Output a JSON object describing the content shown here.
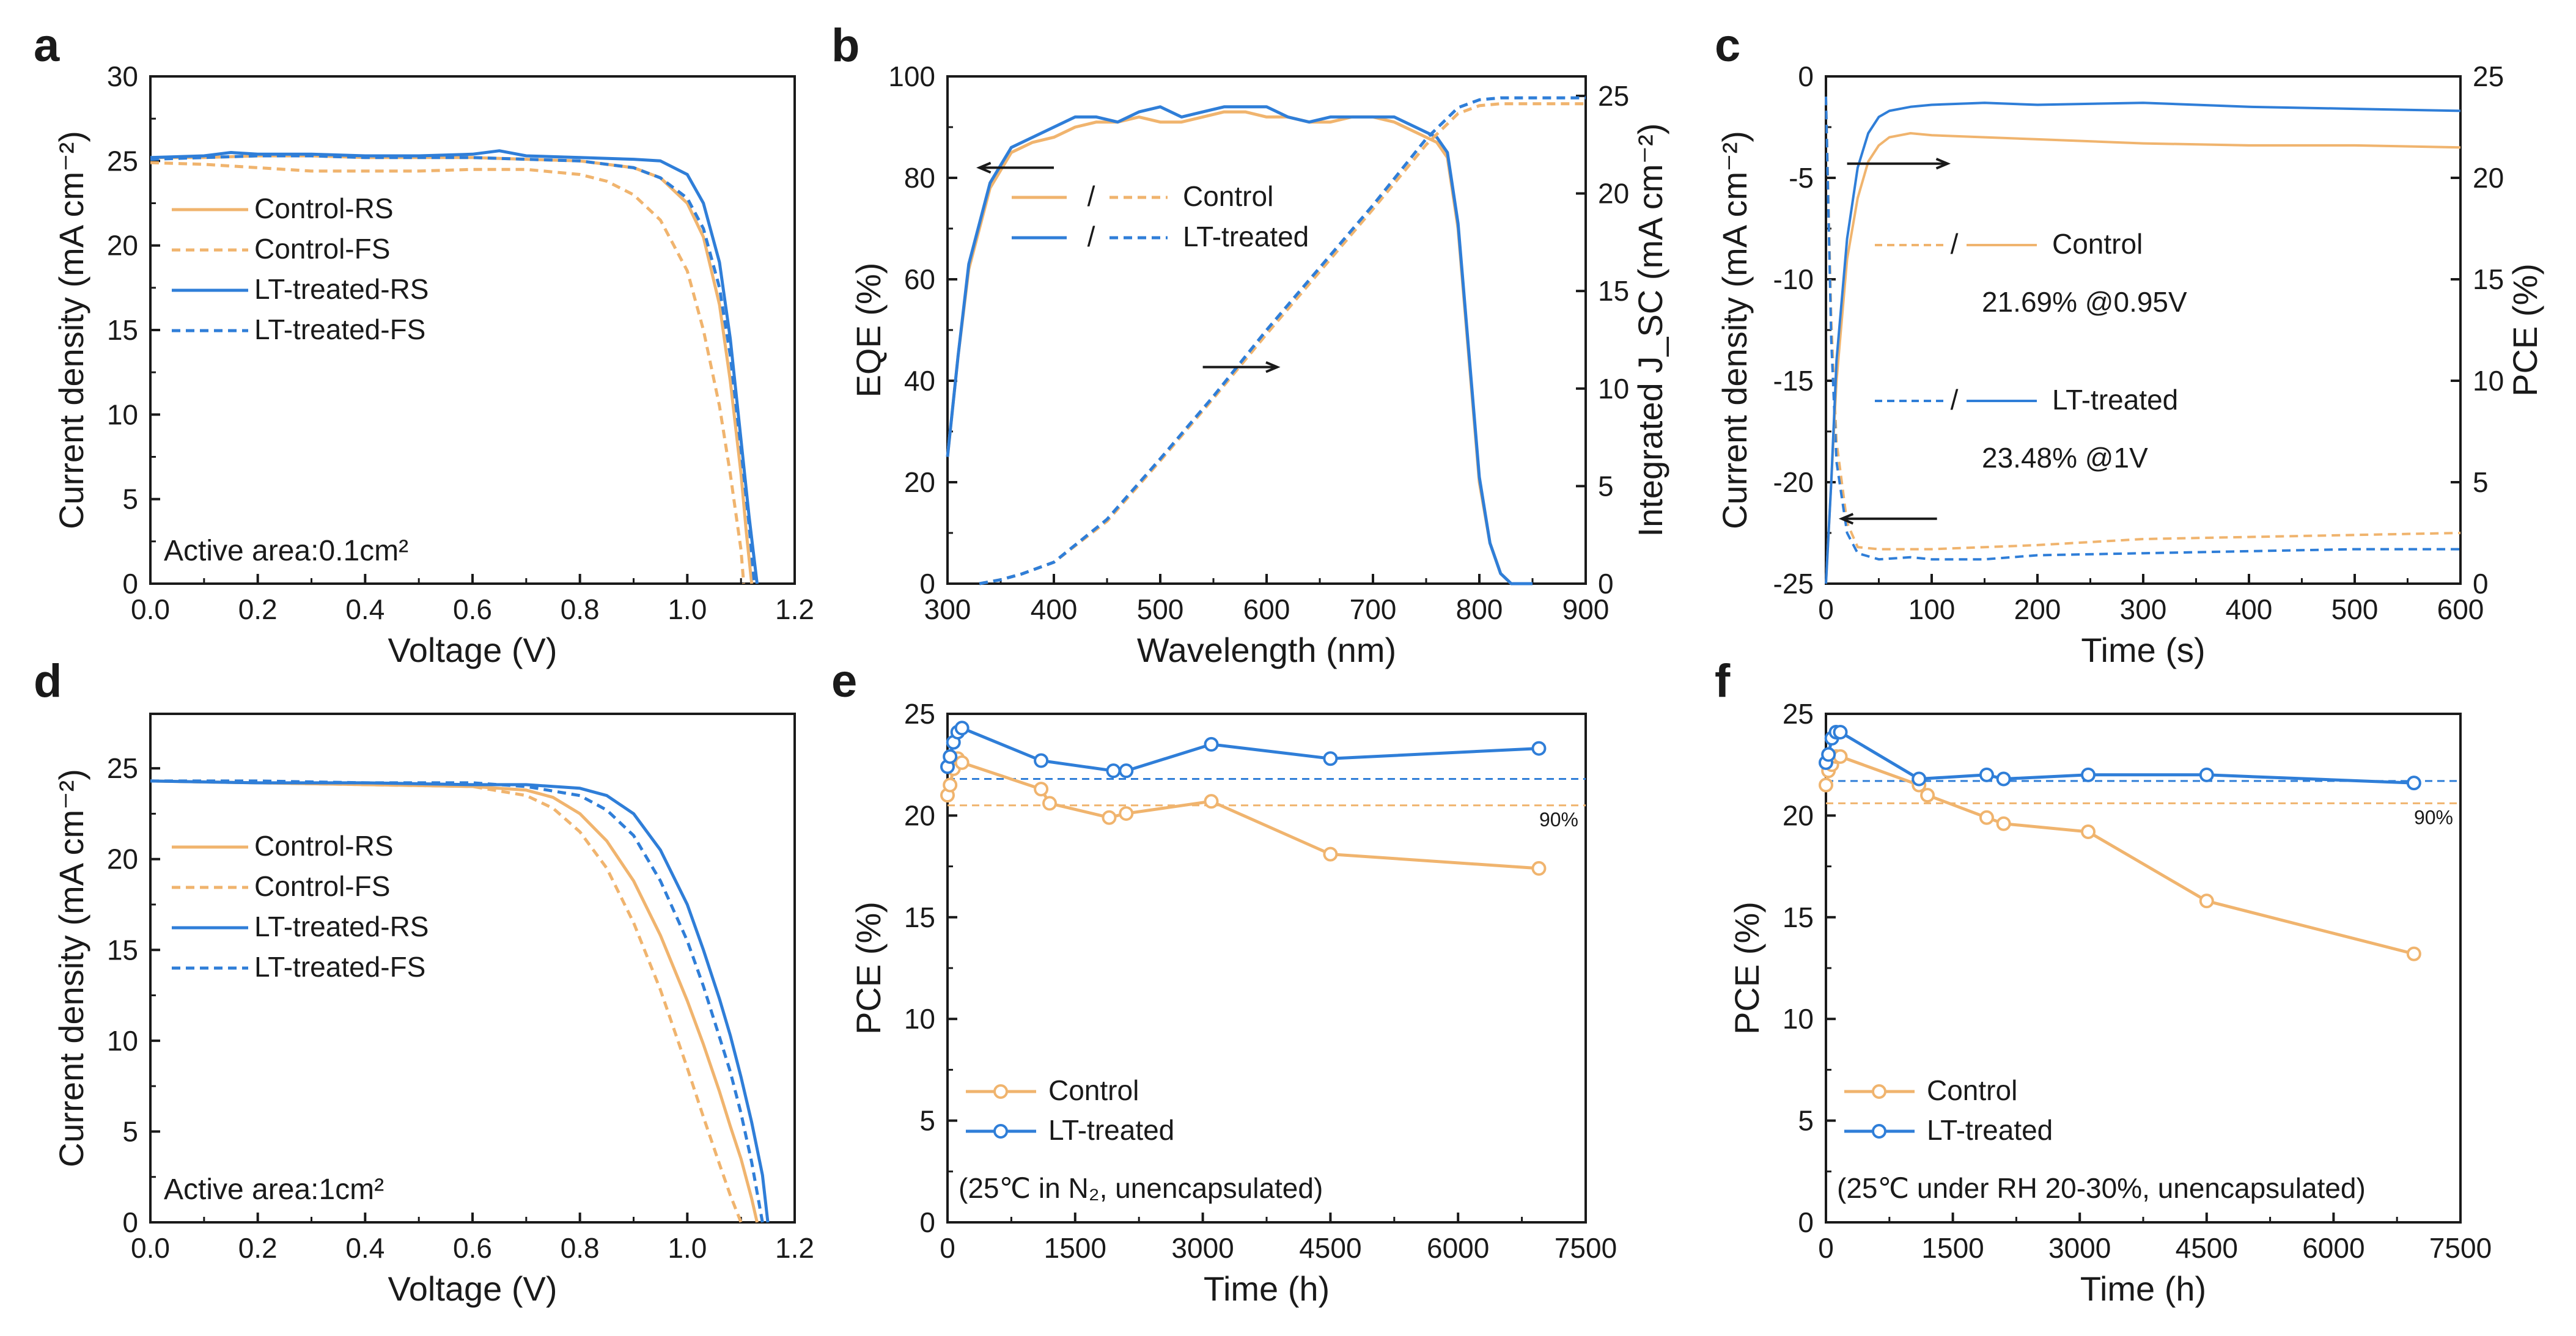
{
  "figure": {
    "colors": {
      "control": "#f0b46e",
      "lt": "#2f7ed8",
      "axis": "#1a1a1a",
      "note": "#2f6cb8"
    }
  },
  "chart_data": [
    {
      "panel": "a",
      "type": "line",
      "xlabel": "Voltage (V)",
      "ylabel": "Current density (mA cm⁻²)",
      "xlim": [
        0,
        1.2
      ],
      "ylim": [
        0,
        30
      ],
      "xticks": [
        "0.0",
        "0.2",
        "0.4",
        "0.6",
        "0.8",
        "1.0",
        "1.2"
      ],
      "yticks": [
        "0",
        "5",
        "10",
        "15",
        "20",
        "25",
        "30"
      ],
      "annotation": "Active area:0.1cm²",
      "legend": [
        "Control-RS",
        "Control-FS",
        "LT-treated-RS",
        "LT-treated-FS"
      ],
      "series": [
        {
          "name": "Control-RS",
          "x": [
            0,
            0.1,
            0.2,
            0.3,
            0.4,
            0.5,
            0.6,
            0.7,
            0.8,
            0.9,
            0.95,
            1.0,
            1.03,
            1.06,
            1.08,
            1.1,
            1.11,
            1.12
          ],
          "y": [
            25.2,
            25.2,
            25.3,
            25.3,
            25.2,
            25.2,
            25.2,
            25.1,
            25.0,
            24.6,
            24.0,
            22.5,
            20.5,
            16.5,
            12.0,
            6.5,
            3.0,
            0
          ]
        },
        {
          "name": "Control-FS",
          "x": [
            0,
            0.1,
            0.2,
            0.3,
            0.4,
            0.5,
            0.6,
            0.7,
            0.8,
            0.85,
            0.9,
            0.95,
            1.0,
            1.03,
            1.06,
            1.08,
            1.1,
            1.105
          ],
          "y": [
            24.9,
            24.8,
            24.6,
            24.4,
            24.4,
            24.4,
            24.5,
            24.5,
            24.2,
            23.8,
            23.0,
            21.5,
            18.5,
            15.0,
            10.5,
            6.5,
            2.0,
            0
          ]
        },
        {
          "name": "LT-treated-RS",
          "x": [
            0,
            0.1,
            0.15,
            0.2,
            0.3,
            0.4,
            0.5,
            0.6,
            0.65,
            0.7,
            0.8,
            0.9,
            0.95,
            1.0,
            1.03,
            1.06,
            1.08,
            1.1,
            1.115,
            1.13
          ],
          "y": [
            25.2,
            25.3,
            25.5,
            25.4,
            25.4,
            25.3,
            25.3,
            25.4,
            25.6,
            25.3,
            25.2,
            25.1,
            25.0,
            24.2,
            22.5,
            19.0,
            14.5,
            8.5,
            4.0,
            0
          ]
        },
        {
          "name": "LT-treated-FS",
          "x": [
            0,
            0.1,
            0.2,
            0.3,
            0.4,
            0.5,
            0.6,
            0.7,
            0.8,
            0.9,
            0.95,
            1.0,
            1.03,
            1.06,
            1.08,
            1.1,
            1.115,
            1.125
          ],
          "y": [
            25.1,
            25.2,
            25.3,
            25.3,
            25.2,
            25.2,
            25.2,
            25.1,
            25.0,
            24.6,
            24.0,
            22.8,
            21.0,
            17.5,
            13.5,
            8.0,
            3.5,
            0
          ]
        }
      ]
    },
    {
      "panel": "b",
      "type": "line",
      "xlabel": "Wavelength (nm)",
      "ylabel": "EQE (%)",
      "y2label": "Integrated J_SC (mA cm⁻²)",
      "xlim": [
        300,
        900
      ],
      "ylim": [
        0,
        100
      ],
      "y2lim": [
        0,
        26
      ],
      "xticks": [
        "300",
        "400",
        "500",
        "600",
        "700",
        "800",
        "900"
      ],
      "yticks": [
        "0",
        "20",
        "40",
        "60",
        "80",
        "100"
      ],
      "y2ticks": [
        "0",
        "5",
        "10",
        "15",
        "20",
        "25"
      ],
      "legend": [
        "Control",
        "LT-treated"
      ],
      "legend_sep": "/",
      "series": [
        {
          "name": "Control EQE",
          "axis": "left",
          "x": [
            300,
            310,
            320,
            340,
            360,
            380,
            400,
            420,
            440,
            460,
            480,
            500,
            520,
            540,
            560,
            580,
            600,
            620,
            640,
            660,
            680,
            700,
            720,
            740,
            760,
            770,
            780,
            790,
            800,
            810,
            820,
            830,
            850
          ],
          "y": [
            25,
            45,
            62,
            78,
            85,
            87,
            88,
            90,
            91,
            91,
            92,
            91,
            91,
            92,
            93,
            93,
            92,
            92,
            91,
            91,
            92,
            92,
            91,
            89,
            87,
            84,
            70,
            45,
            20,
            8,
            2,
            0,
            0
          ]
        },
        {
          "name": "LT-treated EQE",
          "axis": "left",
          "x": [
            300,
            310,
            320,
            340,
            360,
            380,
            400,
            420,
            440,
            460,
            480,
            500,
            520,
            540,
            560,
            580,
            600,
            620,
            640,
            660,
            680,
            700,
            720,
            740,
            760,
            770,
            780,
            790,
            800,
            810,
            820,
            830,
            850
          ],
          "y": [
            25,
            45,
            63,
            79,
            86,
            88,
            90,
            92,
            92,
            91,
            93,
            94,
            92,
            93,
            94,
            94,
            94,
            92,
            91,
            92,
            92,
            92,
            92,
            90,
            88,
            85,
            71,
            46,
            21,
            8,
            2,
            0,
            0
          ]
        },
        {
          "name": "Control Jsc",
          "axis": "right",
          "x": [
            330,
            350,
            370,
            400,
            450,
            500,
            550,
            600,
            650,
            700,
            750,
            780,
            800,
            820,
            850,
            900
          ],
          "y": [
            0,
            0.2,
            0.5,
            1.1,
            3.2,
            6.3,
            9.5,
            12.8,
            16.0,
            19.2,
            22.5,
            24.1,
            24.5,
            24.6,
            24.6,
            24.6
          ]
        },
        {
          "name": "LT-treated Jsc",
          "axis": "right",
          "x": [
            330,
            350,
            370,
            400,
            450,
            500,
            550,
            600,
            650,
            700,
            750,
            780,
            800,
            820,
            850,
            900
          ],
          "y": [
            0,
            0.2,
            0.5,
            1.1,
            3.3,
            6.4,
            9.6,
            13.0,
            16.2,
            19.4,
            22.8,
            24.4,
            24.8,
            24.9,
            24.9,
            24.9
          ]
        }
      ]
    },
    {
      "panel": "c",
      "type": "line",
      "xlabel": "Time (s)",
      "ylabel": "Current density (mA cm⁻²)",
      "y2label": "PCE (%)",
      "xlim": [
        0,
        600
      ],
      "ylim": [
        -25,
        0
      ],
      "y2lim": [
        0,
        25
      ],
      "xticks": [
        "0",
        "100",
        "200",
        "300",
        "400",
        "500",
        "600"
      ],
      "yticks": [
        "-25",
        "-20",
        "-15",
        "-10",
        "-5",
        "0"
      ],
      "y2ticks": [
        "0",
        "5",
        "10",
        "15",
        "20",
        "25"
      ],
      "legend": [
        "Control",
        "LT-treated"
      ],
      "legend_sep": "/",
      "notes": [
        "21.69% @0.95V",
        "23.48% @1V"
      ],
      "series": [
        {
          "name": "Control J",
          "axis": "left",
          "x": [
            0,
            5,
            10,
            20,
            30,
            50,
            80,
            100,
            200,
            300,
            400,
            500,
            600
          ],
          "y": [
            -1,
            -12,
            -18,
            -22,
            -23.2,
            -23.3,
            -23.3,
            -23.3,
            -23.1,
            -22.8,
            -22.7,
            -22.6,
            -22.5
          ]
        },
        {
          "name": "LT-treated J",
          "axis": "left",
          "x": [
            0,
            5,
            10,
            20,
            30,
            50,
            80,
            100,
            150,
            200,
            300,
            400,
            500,
            600
          ],
          "y": [
            -1,
            -13,
            -19,
            -22.5,
            -23.5,
            -23.8,
            -23.7,
            -23.8,
            -23.8,
            -23.6,
            -23.5,
            -23.4,
            -23.3,
            -23.3
          ]
        },
        {
          "name": "Control PCE",
          "axis": "right",
          "x": [
            0,
            5,
            10,
            20,
            30,
            40,
            50,
            60,
            80,
            100,
            200,
            300,
            400,
            500,
            600
          ],
          "y": [
            0,
            5,
            10,
            16,
            19,
            20.8,
            21.6,
            22.0,
            22.2,
            22.1,
            21.9,
            21.7,
            21.6,
            21.6,
            21.5
          ]
        },
        {
          "name": "LT-treated PCE",
          "axis": "right",
          "x": [
            0,
            5,
            10,
            20,
            30,
            40,
            50,
            60,
            80,
            100,
            150,
            200,
            300,
            400,
            500,
            600
          ],
          "y": [
            0,
            5,
            11,
            17,
            20.5,
            22.2,
            23.0,
            23.3,
            23.5,
            23.6,
            23.7,
            23.6,
            23.7,
            23.5,
            23.4,
            23.3
          ]
        }
      ]
    },
    {
      "panel": "d",
      "type": "line",
      "xlabel": "Voltage (V)",
      "ylabel": "Current density (mA cm⁻²)",
      "xlim": [
        0,
        1.2
      ],
      "ylim": [
        0,
        28
      ],
      "xticks": [
        "0.0",
        "0.2",
        "0.4",
        "0.6",
        "0.8",
        "1.0",
        "1.2"
      ],
      "yticks": [
        "0",
        "5",
        "10",
        "15",
        "20",
        "25"
      ],
      "annotation": "Active area:1cm²",
      "legend": [
        "Control-RS",
        "Control-FS",
        "LT-treated-RS",
        "LT-treated-FS"
      ],
      "series": [
        {
          "name": "Control-RS",
          "x": [
            0,
            0.2,
            0.4,
            0.6,
            0.7,
            0.75,
            0.8,
            0.85,
            0.9,
            0.95,
            1.0,
            1.03,
            1.06,
            1.08,
            1.1,
            1.12,
            1.13
          ],
          "y": [
            24.3,
            24.2,
            24.1,
            24.0,
            23.8,
            23.4,
            22.5,
            21.0,
            18.8,
            15.8,
            12.2,
            9.8,
            7.2,
            5.3,
            3.5,
            1.3,
            0
          ]
        },
        {
          "name": "Control-FS",
          "x": [
            0,
            0.2,
            0.4,
            0.6,
            0.7,
            0.75,
            0.8,
            0.85,
            0.9,
            0.95,
            1.0,
            1.03,
            1.06,
            1.08,
            1.1
          ],
          "y": [
            24.3,
            24.2,
            24.1,
            24.0,
            23.5,
            22.8,
            21.5,
            19.5,
            16.5,
            12.8,
            8.5,
            5.8,
            3.2,
            1.5,
            0
          ]
        },
        {
          "name": "LT-treated-RS",
          "x": [
            0,
            0.2,
            0.4,
            0.6,
            0.7,
            0.8,
            0.85,
            0.9,
            0.95,
            1.0,
            1.03,
            1.06,
            1.08,
            1.1,
            1.12,
            1.14,
            1.15
          ],
          "y": [
            24.3,
            24.2,
            24.2,
            24.1,
            24.1,
            23.9,
            23.5,
            22.5,
            20.5,
            17.5,
            15.0,
            12.3,
            10.3,
            8.0,
            5.5,
            2.6,
            0
          ]
        },
        {
          "name": "LT-treated-FS",
          "x": [
            0,
            0.2,
            0.4,
            0.6,
            0.7,
            0.8,
            0.85,
            0.9,
            0.95,
            1.0,
            1.03,
            1.06,
            1.08,
            1.1,
            1.12,
            1.14
          ],
          "y": [
            24.3,
            24.3,
            24.2,
            24.2,
            24.0,
            23.5,
            22.7,
            21.3,
            18.8,
            15.5,
            13.0,
            10.2,
            8.3,
            6.0,
            3.3,
            0
          ]
        }
      ]
    },
    {
      "panel": "e",
      "type": "line",
      "xlabel": "Time (h)",
      "ylabel": "PCE (%)",
      "xlim": [
        0,
        7500
      ],
      "ylim": [
        0,
        25
      ],
      "xticks": [
        "0",
        "1500",
        "3000",
        "4500",
        "6000",
        "7500"
      ],
      "yticks": [
        "0",
        "5",
        "10",
        "15",
        "20",
        "25"
      ],
      "ref_label": "90%",
      "ref_lines": [
        {
          "name": "Control",
          "y": 20.5
        },
        {
          "name": "LT-treated",
          "y": 21.8
        }
      ],
      "legend": [
        "Control",
        "LT-treated"
      ],
      "condition": "(25℃ in N₂, unencapsulated)",
      "series": [
        {
          "name": "Control",
          "x": [
            0,
            30,
            70,
            120,
            170,
            1100,
            1200,
            1900,
            2100,
            3100,
            4500,
            6950
          ],
          "y": [
            21.0,
            21.5,
            22.3,
            22.8,
            22.6,
            21.3,
            20.6,
            19.9,
            20.1,
            20.7,
            18.1,
            17.4
          ]
        },
        {
          "name": "LT-treated",
          "x": [
            0,
            30,
            70,
            120,
            170,
            1100,
            1950,
            2100,
            3100,
            4500,
            6950
          ],
          "y": [
            22.4,
            22.9,
            23.6,
            24.1,
            24.3,
            22.7,
            22.2,
            22.2,
            23.5,
            22.8,
            23.3
          ]
        }
      ]
    },
    {
      "panel": "f",
      "type": "line",
      "xlabel": "Time (h)",
      "ylabel": "PCE (%)",
      "xlim": [
        0,
        7500
      ],
      "ylim": [
        0,
        25
      ],
      "xticks": [
        "0",
        "1500",
        "3000",
        "4500",
        "6000",
        "7500"
      ],
      "yticks": [
        "0",
        "5",
        "10",
        "15",
        "20",
        "25"
      ],
      "ref_label": "90%",
      "ref_lines": [
        {
          "name": "Control",
          "y": 20.6
        },
        {
          "name": "LT-treated",
          "y": 21.7
        }
      ],
      "legend": [
        "Control",
        "LT-treated"
      ],
      "condition": "(25℃ under RH 20-30%, unencapsulated)",
      "series": [
        {
          "name": "Control",
          "x": [
            0,
            30,
            70,
            120,
            170,
            1100,
            1200,
            1900,
            2100,
            3100,
            4500,
            6950
          ],
          "y": [
            21.5,
            22.2,
            22.5,
            22.9,
            22.9,
            21.5,
            21.0,
            19.9,
            19.6,
            19.2,
            15.8,
            13.2
          ]
        },
        {
          "name": "LT-treated",
          "x": [
            0,
            30,
            70,
            120,
            170,
            1100,
            1900,
            2100,
            3100,
            4500,
            6950
          ],
          "y": [
            22.6,
            23.0,
            23.8,
            24.1,
            24.1,
            21.8,
            22.0,
            21.8,
            22.0,
            22.0,
            21.6
          ]
        }
      ]
    }
  ]
}
